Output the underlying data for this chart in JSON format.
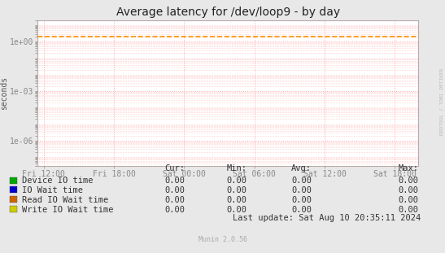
{
  "title": "Average latency for /dev/loop9 - by day",
  "ylabel": "seconds",
  "bg_color": "#e8e8e8",
  "plot_bg_color": "#ffffff",
  "grid_color": "#ffaaaa",
  "x_tick_labels": [
    "Fri 12:00",
    "Fri 18:00",
    "Sat 00:00",
    "Sat 06:00",
    "Sat 12:00",
    "Sat 18:00"
  ],
  "x_tick_positions": [
    0,
    6,
    12,
    18,
    24,
    30
  ],
  "x_min": -0.5,
  "x_max": 32,
  "y_min": 3e-08,
  "y_max": 20.0,
  "dashed_line_y": 2.0,
  "dashed_line_color": "#ff8c00",
  "watermark": "RRDTOOL / TOBI OETIKER",
  "legend_items": [
    {
      "label": "Device IO time",
      "color": "#00aa00"
    },
    {
      "label": "IO Wait time",
      "color": "#0000cc"
    },
    {
      "label": "Read IO Wait time",
      "color": "#cc6600"
    },
    {
      "label": "Write IO Wait time",
      "color": "#cccc00"
    }
  ],
  "table_headers": [
    "Cur:",
    "Min:",
    "Avg:",
    "Max:"
  ],
  "table_values": [
    [
      "0.00",
      "0.00",
      "0.00",
      "0.00"
    ],
    [
      "0.00",
      "0.00",
      "0.00",
      "0.00"
    ],
    [
      "0.00",
      "0.00",
      "0.00",
      "0.00"
    ],
    [
      "0.00",
      "0.00",
      "0.00",
      "0.00"
    ]
  ],
  "last_update": "Last update: Sat Aug 10 20:35:11 2024",
  "munin_version": "Munin 2.0.56",
  "spine_color": "#bbaaaa",
  "arrow_color": "#aaaacc",
  "title_fontsize": 10,
  "tick_fontsize": 7,
  "legend_fontsize": 7.5
}
